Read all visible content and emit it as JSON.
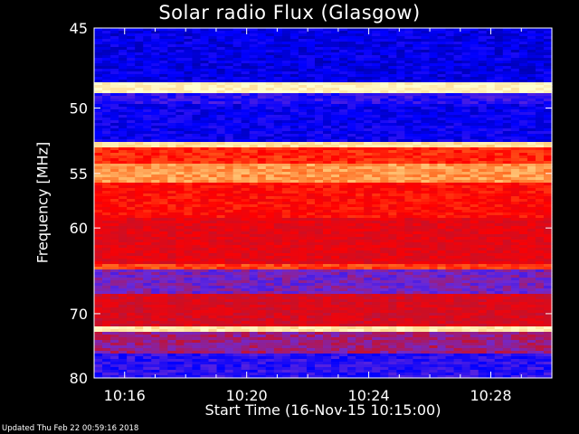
{
  "chart_data": {
    "type": "heatmap",
    "title": "Solar radio Flux (Glasgow)",
    "xlabel": "Start Time (16-Nov-15 10:15:00)",
    "ylabel": "Frequency [MHz]",
    "x_ticks": [
      "10:16",
      "10:20",
      "10:24",
      "10:28"
    ],
    "x_tick_values_min": [
      16,
      20,
      24,
      28
    ],
    "xlim_min": [
      15.0,
      30.0
    ],
    "y_ticks": [
      45,
      50,
      55,
      60,
      70,
      80
    ],
    "ylim_mhz": [
      45,
      80
    ],
    "y_scale": "reciprocal",
    "colormap": [
      "#000080",
      "#0000ff",
      "#6a2ad8",
      "#c81028",
      "#ff0000",
      "#ff6a20",
      "#ffd080",
      "#ffffd0"
    ],
    "bands": [
      {
        "from_mhz": 45.0,
        "to_mhz": 48.3,
        "level": 0.12
      },
      {
        "from_mhz": 48.3,
        "to_mhz": 48.9,
        "level": 0.97
      },
      {
        "from_mhz": 48.9,
        "to_mhz": 49.8,
        "level": 0.2
      },
      {
        "from_mhz": 49.8,
        "to_mhz": 52.4,
        "level": 0.14
      },
      {
        "from_mhz": 52.4,
        "to_mhz": 52.9,
        "level": 0.9
      },
      {
        "from_mhz": 52.9,
        "to_mhz": 54.2,
        "level": 0.62
      },
      {
        "from_mhz": 54.2,
        "to_mhz": 55.8,
        "level": 0.78
      },
      {
        "from_mhz": 55.8,
        "to_mhz": 59.0,
        "level": 0.58
      },
      {
        "from_mhz": 59.0,
        "to_mhz": 63.8,
        "level": 0.5
      },
      {
        "from_mhz": 63.8,
        "to_mhz": 64.5,
        "level": 0.66
      },
      {
        "from_mhz": 64.5,
        "to_mhz": 67.5,
        "level": 0.3
      },
      {
        "from_mhz": 67.5,
        "to_mhz": 71.8,
        "level": 0.47
      },
      {
        "from_mhz": 71.8,
        "to_mhz": 72.4,
        "level": 0.93
      },
      {
        "from_mhz": 72.4,
        "to_mhz": 76.0,
        "level": 0.36
      },
      {
        "from_mhz": 76.0,
        "to_mhz": 80.0,
        "level": 0.2
      }
    ]
  },
  "footer": {
    "updated": "Updated Thu Feb 22 00:59:16 2018"
  }
}
